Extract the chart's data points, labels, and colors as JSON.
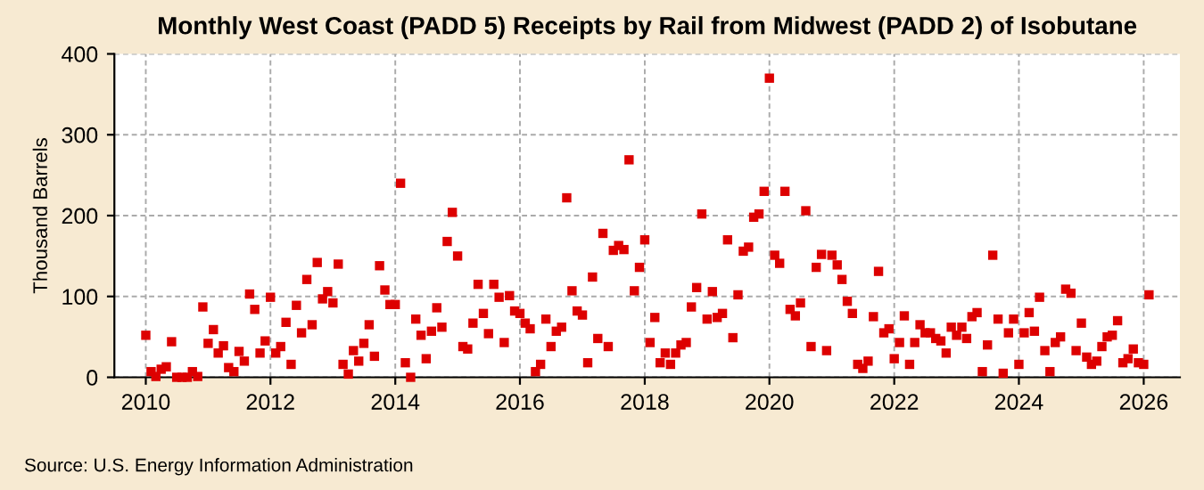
{
  "chart_data": {
    "type": "scatter",
    "title": "Monthly West Coast (PADD 5) Receipts by Rail from Midwest (PADD 2) of Isobutane",
    "ylabel": "Thousand Barrels",
    "annotations": [
      "Source: U.S. Energy Information Administration"
    ],
    "x": [
      "2010-01",
      "2010-02",
      "2010-03",
      "2010-04",
      "2010-05",
      "2010-06",
      "2010-07",
      "2010-08",
      "2010-09",
      "2010-10",
      "2010-11",
      "2010-12",
      "2011-01",
      "2011-02",
      "2011-03",
      "2011-04",
      "2011-05",
      "2011-06",
      "2011-07",
      "2011-08",
      "2011-09",
      "2011-10",
      "2011-11",
      "2011-12",
      "2012-01",
      "2012-02",
      "2012-03",
      "2012-04",
      "2012-05",
      "2012-06",
      "2012-07",
      "2012-08",
      "2012-09",
      "2012-10",
      "2012-11",
      "2012-12",
      "2013-01",
      "2013-02",
      "2013-03",
      "2013-04",
      "2013-05",
      "2013-06",
      "2013-07",
      "2013-08",
      "2013-09",
      "2013-10",
      "2013-11",
      "2013-12",
      "2014-01",
      "2014-02",
      "2014-03",
      "2014-04",
      "2014-05",
      "2014-06",
      "2014-07",
      "2014-08",
      "2014-09",
      "2014-10",
      "2014-11",
      "2014-12",
      "2015-01",
      "2015-02",
      "2015-03",
      "2015-04",
      "2015-05",
      "2015-06",
      "2015-07",
      "2015-08",
      "2015-09",
      "2015-10",
      "2015-11",
      "2015-12",
      "2016-01",
      "2016-02",
      "2016-03",
      "2016-04",
      "2016-05",
      "2016-06",
      "2016-07",
      "2016-08",
      "2016-09",
      "2016-10",
      "2016-11",
      "2016-12",
      "2017-01",
      "2017-02",
      "2017-03",
      "2017-04",
      "2017-05",
      "2017-06",
      "2017-07",
      "2017-08",
      "2017-09",
      "2017-10",
      "2017-11",
      "2017-12",
      "2018-01",
      "2018-02",
      "2018-03",
      "2018-04",
      "2018-05",
      "2018-06",
      "2018-07",
      "2018-08",
      "2018-09",
      "2018-10",
      "2018-11",
      "2018-12",
      "2019-01",
      "2019-02",
      "2019-03",
      "2019-04",
      "2019-05",
      "2019-06",
      "2019-07",
      "2019-08",
      "2019-09",
      "2019-10",
      "2019-11",
      "2019-12",
      "2020-01",
      "2020-02",
      "2020-03",
      "2020-04",
      "2020-05",
      "2020-06",
      "2020-07",
      "2020-08",
      "2020-09",
      "2020-10",
      "2020-11",
      "2020-12",
      "2021-01",
      "2021-02",
      "2021-03",
      "2021-04",
      "2021-05",
      "2021-06",
      "2021-07",
      "2021-08",
      "2021-09",
      "2021-10",
      "2021-11",
      "2021-12",
      "2022-01",
      "2022-02",
      "2022-03",
      "2022-04",
      "2022-05",
      "2022-06",
      "2022-07",
      "2022-08",
      "2022-09",
      "2022-10",
      "2022-11",
      "2022-12",
      "2023-01",
      "2023-02",
      "2023-03",
      "2023-04",
      "2023-05",
      "2023-06",
      "2023-07",
      "2023-08",
      "2023-09",
      "2023-10",
      "2023-11",
      "2023-12",
      "2024-01",
      "2024-02",
      "2024-03",
      "2024-04",
      "2024-05",
      "2024-06",
      "2024-07",
      "2024-08",
      "2024-09",
      "2024-10",
      "2024-11",
      "2024-12",
      "2025-01",
      "2025-02",
      "2025-03",
      "2025-04",
      "2025-05",
      "2025-06",
      "2025-07",
      "2025-08",
      "2025-09",
      "2025-10",
      "2025-11",
      "2025-12",
      "2026-01",
      "2026-02"
    ],
    "series": [
      {
        "color": "#dd0000",
        "values": [
          52,
          7,
          1,
          10,
          13,
          44,
          0,
          0,
          0,
          7,
          1,
          87,
          42,
          59,
          30,
          39,
          12,
          7,
          32,
          20,
          103,
          84,
          30,
          45,
          99,
          30,
          38,
          68,
          16,
          89,
          55,
          121,
          65,
          142,
          97,
          106,
          92,
          140,
          16,
          4,
          33,
          20,
          42,
          65,
          26,
          138,
          108,
          90,
          90,
          240,
          18,
          0,
          72,
          52,
          23,
          57,
          86,
          62,
          168,
          204,
          150,
          38,
          35,
          67,
          115,
          79,
          54,
          115,
          99,
          43,
          101,
          82,
          79,
          67,
          60,
          7,
          16,
          72,
          38,
          57,
          62,
          222,
          107,
          82,
          77,
          18,
          124,
          48,
          178,
          38,
          157,
          163,
          158,
          269,
          107,
          136,
          170,
          43,
          74,
          18,
          30,
          16,
          30,
          40,
          43,
          87,
          111,
          202,
          72,
          106,
          74,
          79,
          170,
          49,
          102,
          156,
          161,
          198,
          202,
          230,
          370,
          151,
          141,
          230,
          84,
          76,
          92,
          206,
          38,
          136,
          152,
          33,
          151,
          139,
          121,
          94,
          79,
          16,
          11,
          20,
          75,
          131,
          55,
          60,
          23,
          43,
          76,
          16,
          43,
          65,
          55,
          55,
          48,
          45,
          30,
          62,
          52,
          62,
          48,
          75,
          80,
          7,
          40,
          151,
          72,
          5,
          55,
          72,
          16,
          55,
          80,
          57,
          99,
          33,
          7,
          43,
          50,
          109,
          104,
          33,
          67,
          25,
          16,
          20,
          38,
          50,
          52,
          70,
          18,
          23,
          35,
          18,
          16,
          102
        ]
      }
    ],
    "xlim": [
      "2009-07-01",
      "2026-08-01"
    ],
    "xticks": [
      "2010",
      "2012",
      "2014",
      "2016",
      "2018",
      "2020",
      "2022",
      "2024",
      "2026"
    ],
    "ylim": [
      0,
      400
    ],
    "yticks": [
      0,
      100,
      200,
      300,
      400
    ],
    "grid": true,
    "marker": "square"
  }
}
